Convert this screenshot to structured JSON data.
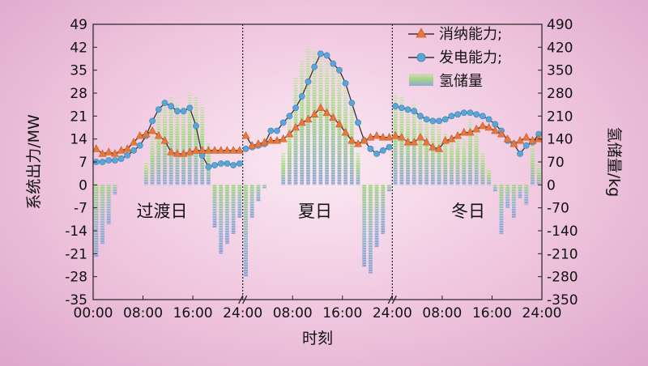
{
  "chart_data": {
    "type": "bar+line",
    "xlabel": "时刻",
    "ylabel_left": "系统出力/MW",
    "ylabel_right": "氢储量/kg",
    "ylim_left": [
      -35,
      49
    ],
    "ylim_right": [
      -350,
      490
    ],
    "yticks_left": [
      "49",
      "42",
      "35",
      "28",
      "21",
      "14",
      "7",
      "0",
      "-7",
      "-14",
      "-21",
      "-28",
      "-35"
    ],
    "yticks_right": [
      "490",
      "420",
      "350",
      "280",
      "210",
      "140",
      "70",
      "0",
      "-70",
      "-140",
      "-210",
      "-280",
      "-350"
    ],
    "xticks": [
      "00:00",
      "08:00",
      "16:00",
      "24:00",
      "08:00",
      "16:00",
      "24:00",
      "08:00",
      "16:00",
      "24:00"
    ],
    "segments": [
      "过渡日",
      "夏日",
      "冬日"
    ],
    "legend": [
      "消纳能力;",
      "发电能力;",
      "氢储量"
    ],
    "colors": {
      "absorb": "#e8773b",
      "generate": "#5aa6d6",
      "bar_top": "#9ed67c",
      "bar_bottom": "#8a9fd0",
      "line": "#333333"
    },
    "series": [
      {
        "name": "消纳能力;",
        "values": [
          11,
          9.5,
          10,
          9.5,
          10.5,
          11,
          13,
          15,
          15.5,
          16.5,
          15,
          13.5,
          10,
          9.5,
          9.5,
          10,
          10.5,
          10.5,
          10.5,
          10.5,
          10.5,
          10.5,
          10.5,
          10.5,
          15,
          12,
          12.5,
          13,
          13.5,
          13.5,
          14,
          15.5,
          17.5,
          19,
          20,
          21.5,
          23.5,
          22,
          20.5,
          18.5,
          16,
          13.5,
          12.5,
          13.5,
          14.5,
          15,
          14.5,
          14.5,
          15,
          14.5,
          13,
          13,
          14.5,
          13,
          11.5,
          11,
          13.5,
          14,
          15,
          16,
          16,
          17,
          18,
          17.5,
          16.5,
          15.5,
          14,
          12.5,
          13.5,
          14.5,
          13.5,
          14
        ]
      },
      {
        "name": "发电能力;",
        "values": [
          7,
          7,
          7.5,
          7.5,
          8,
          9,
          10.5,
          12,
          15,
          19.5,
          23,
          25,
          24,
          22.5,
          22.5,
          23.5,
          18,
          9,
          5.5,
          6,
          6.5,
          6.5,
          6,
          6.5,
          11,
          11.5,
          12,
          12.5,
          16.5,
          16.5,
          19,
          21,
          23.5,
          27,
          31.5,
          36,
          40,
          39.5,
          37,
          35,
          31,
          25,
          19,
          13.5,
          11,
          9.5,
          10.5,
          11.5,
          24,
          23.5,
          23,
          22.5,
          21,
          20,
          19.5,
          19.5,
          20,
          21,
          21.5,
          22,
          22,
          21.5,
          21,
          20,
          18.5,
          16.5,
          13.5,
          12.5,
          9.5,
          12,
          13,
          15.5
        ]
      },
      {
        "name": "氢储量",
        "values": [
          -220,
          -180,
          -120,
          -30,
          0,
          0,
          0,
          0,
          70,
          150,
          220,
          250,
          270,
          250,
          240,
          280,
          270,
          240,
          130,
          -130,
          -210,
          -180,
          -150,
          -100,
          -280,
          -100,
          -50,
          -10,
          0,
          0,
          100,
          200,
          330,
          380,
          420,
          410,
          390,
          380,
          380,
          350,
          300,
          250,
          100,
          -250,
          -270,
          -190,
          -150,
          -20,
          280,
          270,
          240,
          250,
          220,
          200,
          200,
          180,
          160,
          150,
          160,
          140,
          200,
          170,
          100,
          50,
          -20,
          -150,
          -70,
          -100,
          -40,
          -60,
          120,
          60
        ]
      }
    ]
  },
  "labels": {
    "xlabel": "时刻",
    "ylabel_left": "系统出力/MW",
    "ylabel_right": "氢储量/kg",
    "seg1": "过渡日",
    "seg2": "夏日",
    "seg3": "冬日",
    "legend1": "消纳能力;",
    "legend2": "发电能力;",
    "legend3": "氢储量"
  }
}
